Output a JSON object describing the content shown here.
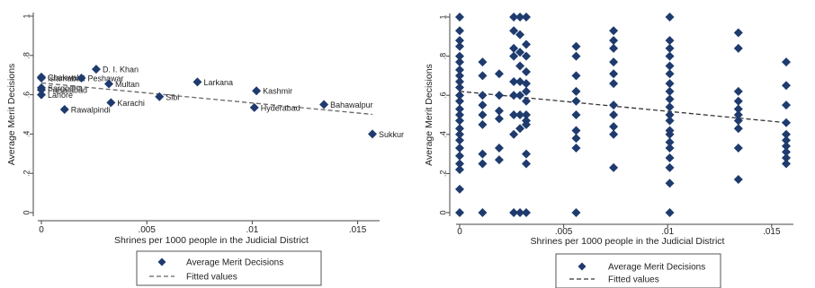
{
  "chart_data": [
    {
      "type": "scatter",
      "xlabel": "Shrines per 1000 people in the Judicial District",
      "ylabel": "Average Merit Decisions",
      "xlim": [
        0,
        0.0165
      ],
      "ylim": [
        0,
        1
      ],
      "xticks": [
        0,
        0.005,
        0.01,
        0.015
      ],
      "xtick_labels": [
        "0",
        ".005",
        ".01",
        ".015"
      ],
      "yticks": [
        0,
        0.2,
        0.4,
        0.6,
        0.8,
        1
      ],
      "ytick_labels": [
        "0",
        ".2",
        ".4",
        ".6",
        ".8",
        "1"
      ],
      "grid": false,
      "legend_position": "bottom",
      "legend": [
        "Average Merit Decisions",
        "Fitted values"
      ],
      "series": [
        {
          "name": "Average Merit Decisions",
          "marker": "diamond",
          "color": "#1f3b6e",
          "points": [
            {
              "x": 0.0,
              "y": 0.69,
              "label": "Chakwal"
            },
            {
              "x": 0.0,
              "y": 0.685,
              "label": "Islamabad"
            },
            {
              "x": 0.0,
              "y": 0.635,
              "label": "Sargodha"
            },
            {
              "x": 0.0,
              "y": 0.625,
              "label": "Faisalabad"
            },
            {
              "x": 0.0,
              "y": 0.6,
              "label": "Lahore"
            },
            {
              "x": 0.0011,
              "y": 0.525,
              "label": "Rawalpindi"
            },
            {
              "x": 0.0019,
              "y": 0.685,
              "label": "Peshawar"
            },
            {
              "x": 0.0026,
              "y": 0.73,
              "label": "D. I. Khan"
            },
            {
              "x": 0.0032,
              "y": 0.655,
              "label": "Multan"
            },
            {
              "x": 0.0033,
              "y": 0.56,
              "label": "Karachi"
            },
            {
              "x": 0.0056,
              "y": 0.59,
              "label": "Sibi"
            },
            {
              "x": 0.0074,
              "y": 0.665,
              "label": "Larkana"
            },
            {
              "x": 0.0102,
              "y": 0.62,
              "label": "Kashmir"
            },
            {
              "x": 0.0101,
              "y": 0.535,
              "label": "Hyderabad"
            },
            {
              "x": 0.0134,
              "y": 0.55,
              "label": "Bahawalpur"
            },
            {
              "x": 0.0157,
              "y": 0.4,
              "label": "Sukkur"
            }
          ]
        },
        {
          "name": "Fitted values",
          "style": "dashed",
          "color": "#666666",
          "x": [
            0,
            0.0157
          ],
          "y": [
            0.66,
            0.5
          ]
        }
      ]
    },
    {
      "type": "scatter",
      "xlabel": "Shrines per 1000 people in the Judicial District",
      "ylabel": "Average Merit Decisions",
      "xlim": [
        0,
        0.0165
      ],
      "ylim": [
        0,
        1
      ],
      "xticks": [
        0,
        0.005,
        0.01,
        0.015
      ],
      "xtick_labels": [
        "0",
        ".005",
        ".01",
        ".015"
      ],
      "yticks": [
        0,
        0.2,
        0.4,
        0.6,
        0.8,
        1
      ],
      "ytick_labels": [
        "0",
        ".2",
        ".4",
        ".6",
        ".8",
        "1"
      ],
      "grid": false,
      "legend_position": "bottom",
      "legend": [
        "Average Merit Decisions",
        "Fitted values"
      ],
      "series": [
        {
          "name": "Average Merit Decisions",
          "marker": "diamond",
          "color": "#1f3b6e",
          "points": [
            {
              "x": 0.0,
              "y": 1.0
            },
            {
              "x": 0.0,
              "y": 0.93
            },
            {
              "x": 0.0,
              "y": 0.88
            },
            {
              "x": 0.0,
              "y": 0.85
            },
            {
              "x": 0.0,
              "y": 0.8
            },
            {
              "x": 0.0,
              "y": 0.77
            },
            {
              "x": 0.0,
              "y": 0.73
            },
            {
              "x": 0.0,
              "y": 0.7
            },
            {
              "x": 0.0,
              "y": 0.67
            },
            {
              "x": 0.0,
              "y": 0.64
            },
            {
              "x": 0.0,
              "y": 0.6
            },
            {
              "x": 0.0,
              "y": 0.57
            },
            {
              "x": 0.0,
              "y": 0.53
            },
            {
              "x": 0.0,
              "y": 0.5
            },
            {
              "x": 0.0,
              "y": 0.47
            },
            {
              "x": 0.0,
              "y": 0.43
            },
            {
              "x": 0.0,
              "y": 0.4
            },
            {
              "x": 0.0,
              "y": 0.37
            },
            {
              "x": 0.0,
              "y": 0.33
            },
            {
              "x": 0.0,
              "y": 0.29
            },
            {
              "x": 0.0,
              "y": 0.25
            },
            {
              "x": 0.0,
              "y": 0.22
            },
            {
              "x": 0.0,
              "y": 0.12
            },
            {
              "x": 0.0,
              "y": 0.0
            },
            {
              "x": 0.0011,
              "y": 0.77
            },
            {
              "x": 0.0011,
              "y": 0.7
            },
            {
              "x": 0.0011,
              "y": 0.6
            },
            {
              "x": 0.0011,
              "y": 0.55
            },
            {
              "x": 0.0011,
              "y": 0.5
            },
            {
              "x": 0.0011,
              "y": 0.45
            },
            {
              "x": 0.0011,
              "y": 0.3
            },
            {
              "x": 0.0011,
              "y": 0.25
            },
            {
              "x": 0.0011,
              "y": 0.0
            },
            {
              "x": 0.0019,
              "y": 0.71
            },
            {
              "x": 0.0019,
              "y": 0.6
            },
            {
              "x": 0.0019,
              "y": 0.52
            },
            {
              "x": 0.0019,
              "y": 0.48
            },
            {
              "x": 0.0019,
              "y": 0.33
            },
            {
              "x": 0.0019,
              "y": 0.27
            },
            {
              "x": 0.0026,
              "y": 1.0
            },
            {
              "x": 0.0026,
              "y": 0.93
            },
            {
              "x": 0.0026,
              "y": 0.84
            },
            {
              "x": 0.0026,
              "y": 0.8
            },
            {
              "x": 0.0026,
              "y": 0.67
            },
            {
              "x": 0.0026,
              "y": 0.6
            },
            {
              "x": 0.0026,
              "y": 0.5
            },
            {
              "x": 0.0026,
              "y": 0.4
            },
            {
              "x": 0.0026,
              "y": 0.0
            },
            {
              "x": 0.0029,
              "y": 1.0
            },
            {
              "x": 0.0029,
              "y": 0.91
            },
            {
              "x": 0.0029,
              "y": 0.82
            },
            {
              "x": 0.0029,
              "y": 0.75
            },
            {
              "x": 0.0029,
              "y": 0.67
            },
            {
              "x": 0.0029,
              "y": 0.6
            },
            {
              "x": 0.0029,
              "y": 0.5
            },
            {
              "x": 0.0029,
              "y": 0.43
            },
            {
              "x": 0.0029,
              "y": 0.0
            },
            {
              "x": 0.0032,
              "y": 1.0
            },
            {
              "x": 0.0032,
              "y": 0.86
            },
            {
              "x": 0.0032,
              "y": 0.8
            },
            {
              "x": 0.0032,
              "y": 0.72
            },
            {
              "x": 0.0032,
              "y": 0.66
            },
            {
              "x": 0.0032,
              "y": 0.62
            },
            {
              "x": 0.0032,
              "y": 0.57
            },
            {
              "x": 0.0032,
              "y": 0.5
            },
            {
              "x": 0.0032,
              "y": 0.47
            },
            {
              "x": 0.0032,
              "y": 0.45
            },
            {
              "x": 0.0032,
              "y": 0.3
            },
            {
              "x": 0.0032,
              "y": 0.25
            },
            {
              "x": 0.0032,
              "y": 0.0
            },
            {
              "x": 0.0056,
              "y": 0.85
            },
            {
              "x": 0.0056,
              "y": 0.8
            },
            {
              "x": 0.0056,
              "y": 0.7
            },
            {
              "x": 0.0056,
              "y": 0.62
            },
            {
              "x": 0.0056,
              "y": 0.57
            },
            {
              "x": 0.0056,
              "y": 0.5
            },
            {
              "x": 0.0056,
              "y": 0.42
            },
            {
              "x": 0.0056,
              "y": 0.38
            },
            {
              "x": 0.0056,
              "y": 0.33
            },
            {
              "x": 0.0056,
              "y": 0.0
            },
            {
              "x": 0.0074,
              "y": 0.93
            },
            {
              "x": 0.0074,
              "y": 0.88
            },
            {
              "x": 0.0074,
              "y": 0.84
            },
            {
              "x": 0.0074,
              "y": 0.77
            },
            {
              "x": 0.0074,
              "y": 0.71
            },
            {
              "x": 0.0074,
              "y": 0.66
            },
            {
              "x": 0.0074,
              "y": 0.55
            },
            {
              "x": 0.0074,
              "y": 0.5
            },
            {
              "x": 0.0074,
              "y": 0.44
            },
            {
              "x": 0.0074,
              "y": 0.4
            },
            {
              "x": 0.0074,
              "y": 0.23
            },
            {
              "x": 0.0101,
              "y": 1.0
            },
            {
              "x": 0.0101,
              "y": 0.88
            },
            {
              "x": 0.0101,
              "y": 0.84
            },
            {
              "x": 0.0101,
              "y": 0.8
            },
            {
              "x": 0.0101,
              "y": 0.75
            },
            {
              "x": 0.0101,
              "y": 0.71
            },
            {
              "x": 0.0101,
              "y": 0.66
            },
            {
              "x": 0.0101,
              "y": 0.62
            },
            {
              "x": 0.0101,
              "y": 0.58
            },
            {
              "x": 0.0101,
              "y": 0.54
            },
            {
              "x": 0.0101,
              "y": 0.5
            },
            {
              "x": 0.0101,
              "y": 0.47
            },
            {
              "x": 0.0101,
              "y": 0.42
            },
            {
              "x": 0.0101,
              "y": 0.4
            },
            {
              "x": 0.0101,
              "y": 0.36
            },
            {
              "x": 0.0101,
              "y": 0.33
            },
            {
              "x": 0.0101,
              "y": 0.28
            },
            {
              "x": 0.0101,
              "y": 0.23
            },
            {
              "x": 0.0101,
              "y": 0.15
            },
            {
              "x": 0.0101,
              "y": 0.0
            },
            {
              "x": 0.0134,
              "y": 0.92
            },
            {
              "x": 0.0134,
              "y": 0.84
            },
            {
              "x": 0.0134,
              "y": 0.62
            },
            {
              "x": 0.0134,
              "y": 0.57
            },
            {
              "x": 0.0134,
              "y": 0.53
            },
            {
              "x": 0.0134,
              "y": 0.5
            },
            {
              "x": 0.0134,
              "y": 0.47
            },
            {
              "x": 0.0134,
              "y": 0.43
            },
            {
              "x": 0.0134,
              "y": 0.33
            },
            {
              "x": 0.0134,
              "y": 0.17
            },
            {
              "x": 0.0157,
              "y": 0.77
            },
            {
              "x": 0.0157,
              "y": 0.65
            },
            {
              "x": 0.0157,
              "y": 0.55
            },
            {
              "x": 0.0157,
              "y": 0.46
            },
            {
              "x": 0.0157,
              "y": 0.4
            },
            {
              "x": 0.0157,
              "y": 0.37
            },
            {
              "x": 0.0157,
              "y": 0.34
            },
            {
              "x": 0.0157,
              "y": 0.31
            },
            {
              "x": 0.0157,
              "y": 0.28
            },
            {
              "x": 0.0157,
              "y": 0.25
            }
          ]
        },
        {
          "name": "Fitted values",
          "style": "dashed",
          "color": "#333333",
          "x": [
            0,
            0.0157
          ],
          "y": [
            0.62,
            0.46
          ]
        }
      ]
    }
  ]
}
